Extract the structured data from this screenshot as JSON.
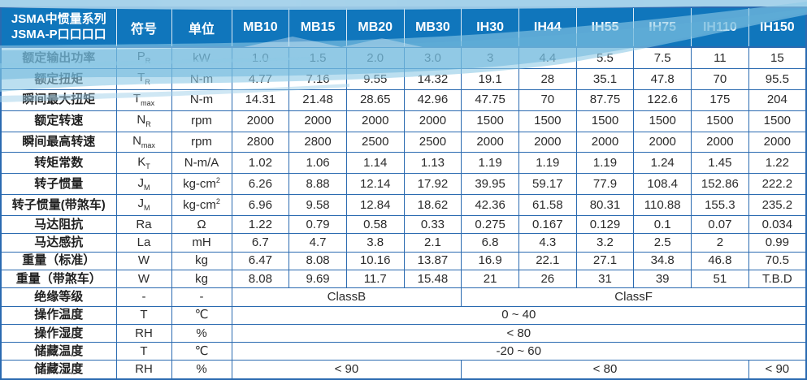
{
  "header": {
    "title_line1": "JSMA中惯量系列",
    "title_line2": "JSMA-P口口口口",
    "symbol_col": "符号",
    "unit_col": "单位",
    "models": [
      "MB10",
      "MB15",
      "MB20",
      "MB30",
      "IH30",
      "IH44",
      "IH55",
      "IH75",
      "IH110",
      "IH150"
    ]
  },
  "table": {
    "rows": [
      {
        "label": "额定输出功率",
        "symbol": {
          "main": "P",
          "sub": "R"
        },
        "unit": {
          "text": "kW"
        },
        "values": [
          "1.0",
          "1.5",
          "2.0",
          "3.0",
          "3",
          "4.4",
          "5.5",
          "7.5",
          "11",
          "15"
        ]
      },
      {
        "label": "额定扭矩",
        "symbol": {
          "main": "T",
          "sub": "R"
        },
        "unit": {
          "text": "N-m"
        },
        "values": [
          "4.77",
          "7.16",
          "9.55",
          "14.32",
          "19.1",
          "28",
          "35.1",
          "47.8",
          "70",
          "95.5"
        ]
      },
      {
        "label": "瞬间最大扭矩",
        "symbol": {
          "main": "T",
          "sub": "max"
        },
        "unit": {
          "text": "N-m"
        },
        "values": [
          "14.31",
          "21.48",
          "28.65",
          "42.96",
          "47.75",
          "70",
          "87.75",
          "122.6",
          "175",
          "204"
        ]
      },
      {
        "label": "额定转速",
        "symbol": {
          "main": "N",
          "sub": "R"
        },
        "unit": {
          "text": "rpm"
        },
        "values": [
          "2000",
          "2000",
          "2000",
          "2000",
          "1500",
          "1500",
          "1500",
          "1500",
          "1500",
          "1500"
        ]
      },
      {
        "label": "瞬间最高转速",
        "symbol": {
          "main": "N",
          "sub": "max"
        },
        "unit": {
          "text": "rpm"
        },
        "values": [
          "2800",
          "2800",
          "2500",
          "2500",
          "2000",
          "2000",
          "2000",
          "2000",
          "2000",
          "2000"
        ]
      },
      {
        "label": "转矩常数",
        "symbol": {
          "main": "K",
          "sub": "T"
        },
        "unit": {
          "text": "N-m/A"
        },
        "values": [
          "1.02",
          "1.06",
          "1.14",
          "1.13",
          "1.19",
          "1.19",
          "1.19",
          "1.24",
          "1.45",
          "1.22"
        ]
      },
      {
        "label": "转子惯量",
        "symbol": {
          "main": "J",
          "sub": "M"
        },
        "unit": {
          "text": "kg-cm",
          "sup": "2"
        },
        "values": [
          "6.26",
          "8.88",
          "12.14",
          "17.92",
          "39.95",
          "59.17",
          "77.9",
          "108.4",
          "152.86",
          "222.2"
        ]
      },
      {
        "label": "转子惯量(带煞车)",
        "symbol": {
          "main": "J",
          "sub": "M"
        },
        "unit": {
          "text": "kg-cm",
          "sup": "2"
        },
        "values": [
          "6.96",
          "9.58",
          "12.84",
          "18.62",
          "42.36",
          "61.58",
          "80.31",
          "110.88",
          "155.3",
          "235.2"
        ]
      },
      {
        "label": "马达阻抗",
        "symbol": {
          "main": "Ra"
        },
        "unit": {
          "text": "Ω"
        },
        "values": [
          "1.22",
          "0.79",
          "0.58",
          "0.33",
          "0.275",
          "0.167",
          "0.129",
          "0.1",
          "0.07",
          "0.034"
        ]
      },
      {
        "label": "马达感抗",
        "symbol": {
          "main": "La"
        },
        "unit": {
          "text": "mH"
        },
        "values": [
          "6.7",
          "4.7",
          "3.8",
          "2.1",
          "6.8",
          "4.3",
          "3.2",
          "2.5",
          "2",
          "0.99"
        ]
      },
      {
        "label": "重量（标准）",
        "symbol": {
          "main": "W"
        },
        "unit": {
          "text": "kg"
        },
        "values": [
          "6.47",
          "8.08",
          "10.16",
          "13.87",
          "16.9",
          "22.1",
          "27.1",
          "34.8",
          "46.8",
          "70.5"
        ]
      },
      {
        "label": "重量（带煞车）",
        "symbol": {
          "main": "W"
        },
        "unit": {
          "text": "kg"
        },
        "values": [
          "8.08",
          "9.69",
          "11.7",
          "15.48",
          "21",
          "26",
          "31",
          "39",
          "51",
          "T.B.D"
        ]
      },
      {
        "label": "绝缘等级",
        "symbol": {
          "main": "-"
        },
        "unit": {
          "text": "-"
        },
        "spans": [
          {
            "text": "ClassB",
            "cols": 4
          },
          {
            "text": "ClassF",
            "cols": 6
          }
        ]
      },
      {
        "label": "操作温度",
        "symbol": {
          "main": "T"
        },
        "unit": {
          "text": "℃"
        },
        "spans": [
          {
            "text": "0 ~ 40",
            "cols": 10
          }
        ]
      },
      {
        "label": "操作湿度",
        "symbol": {
          "main": "RH"
        },
        "unit": {
          "text": "%"
        },
        "spans": [
          {
            "text": "< 80",
            "cols": 10
          }
        ]
      },
      {
        "label": "储藏温度",
        "symbol": {
          "main": "T"
        },
        "unit": {
          "text": "℃"
        },
        "spans": [
          {
            "text": "-20 ~ 60",
            "cols": 10
          }
        ]
      },
      {
        "label": "储藏湿度",
        "symbol": {
          "main": "RH"
        },
        "unit": {
          "text": "%"
        },
        "spans": [
          {
            "text": "< 90",
            "cols": 4
          },
          {
            "text": "< 80",
            "cols": 5
          },
          {
            "text": "< 90",
            "cols": 1
          }
        ]
      }
    ]
  },
  "colors": {
    "header_bg": "#1076bc",
    "grid_border": "#2a6ab0",
    "header_text": "#ffffff",
    "body_text": "#2b2b2b",
    "wave_light": "#8ec9e6",
    "wave_mid": "#5fb0d8",
    "top_strip": "#9ccde8"
  }
}
